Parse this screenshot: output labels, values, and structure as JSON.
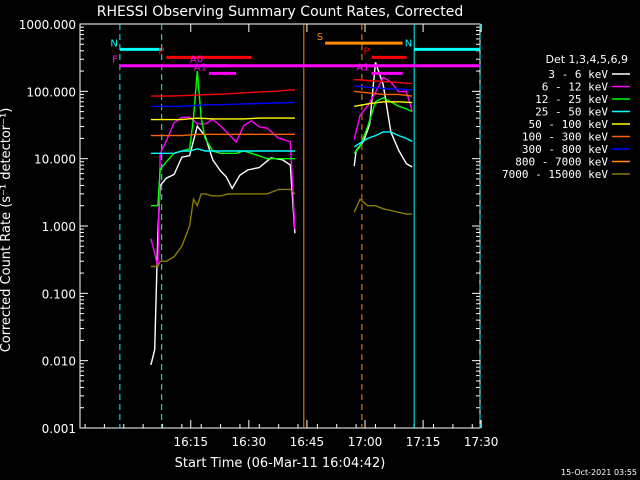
{
  "chart_data": {
    "type": "line",
    "title": "RHESSI Observing Summary Count Rates, Corrected",
    "xlabel": "Start Time (06-Mar-11 16:04:42)",
    "ylabel": "Corrected Count Rate (s⁻¹ detector⁻¹)",
    "yscale": "log",
    "ylim": [
      0.001,
      1000
    ],
    "xlim_minutes": [
      0,
      85
    ],
    "x_ticks": [
      {
        "label": "16:15",
        "min": 10.3
      },
      {
        "label": "16:30",
        "min": 25.3
      },
      {
        "label": "16:45",
        "min": 40.3
      },
      {
        "label": "17:00",
        "min": 55.3
      },
      {
        "label": "17:15",
        "min": 70.3
      },
      {
        "label": "17:30",
        "min": 85.3
      }
    ],
    "y_ticks": [
      {
        "label": "0.001",
        "v": 0.001
      },
      {
        "label": "0.010",
        "v": 0.01
      },
      {
        "label": "0.100",
        "v": 0.1
      },
      {
        "label": "1.000",
        "v": 1
      },
      {
        "label": "10.000",
        "v": 10
      },
      {
        "label": "100.000",
        "v": 100
      },
      {
        "label": "1000.000",
        "v": 1000
      }
    ],
    "legend_title": "Det 1,3,4,5,6,9",
    "legend_position": "right",
    "gaps": [
      [
        37.2,
        52.5
      ]
    ],
    "segments": [
      [
        0,
        37.2
      ],
      [
        52.5,
        67.5
      ]
    ],
    "series": [
      {
        "name": "3 - 6 keV",
        "color": "#ffffff",
        "x": [
          0,
          1,
          1.8,
          2.4,
          4,
          6,
          8,
          10,
          12,
          14,
          16,
          18,
          19.5,
          21,
          23,
          25,
          28,
          31,
          34,
          36,
          37.2,
          52.5,
          53,
          55,
          56.5,
          58,
          60,
          62,
          64,
          66,
          67.5
        ],
        "y": [
          0.008,
          0.013,
          0.9,
          4,
          5,
          6,
          9,
          12,
          35,
          20,
          10,
          6,
          5,
          4.5,
          5.5,
          6.5,
          7.5,
          9,
          11,
          9,
          0.7,
          8,
          12,
          18,
          40,
          250,
          120,
          25,
          12,
          10,
          8
        ]
      },
      {
        "name": "6 - 12 keV",
        "color": "#ff00ff",
        "x": [
          0,
          1,
          1.8,
          2.4,
          4,
          6,
          8,
          10,
          12,
          14,
          16,
          18,
          20,
          22,
          24,
          26,
          28,
          30,
          33,
          36,
          37.2,
          52.5,
          54,
          56,
          58,
          60,
          62,
          64,
          66,
          67.5
        ],
        "y": [
          0.6,
          0.35,
          0.3,
          12,
          18,
          35,
          35,
          45,
          38,
          30,
          40,
          28,
          22,
          22,
          30,
          35,
          30,
          25,
          23,
          20,
          0.8,
          20,
          40,
          60,
          120,
          150,
          130,
          100,
          90,
          60
        ]
      },
      {
        "name": "12 - 25 keV",
        "color": "#00ff00",
        "x": [
          0,
          1,
          1.8,
          2.4,
          4,
          6,
          8,
          10,
          11,
          12,
          13,
          14,
          16,
          18,
          20,
          22,
          24,
          26,
          28,
          30,
          33,
          36,
          37.2,
          52.5,
          54,
          56,
          58,
          60,
          62,
          64,
          66,
          67.5
        ],
        "y": [
          2,
          2,
          2,
          7,
          9,
          12,
          13,
          14,
          40,
          200,
          40,
          20,
          13,
          12,
          12,
          12,
          13,
          12,
          11,
          10,
          10,
          10,
          10,
          12,
          15,
          30,
          70,
          80,
          70,
          60,
          55,
          50
        ]
      },
      {
        "name": "25 - 50 keV",
        "color": "#00ffff",
        "x": [
          0,
          2,
          4,
          6,
          8,
          10,
          12,
          14,
          16,
          18,
          20,
          22,
          24,
          26,
          28,
          30,
          32,
          34,
          36,
          37.2,
          52.5,
          54,
          56,
          58,
          60,
          62,
          64,
          66,
          67.5
        ],
        "y": [
          12,
          12,
          12,
          12,
          13,
          13,
          14,
          13,
          13,
          13,
          13,
          13,
          13,
          13,
          13,
          13,
          13,
          13,
          13,
          13,
          15,
          17,
          20,
          22,
          25,
          25,
          22,
          20,
          18
        ]
      },
      {
        "name": "50 - 100 keV",
        "color": "#ffff00",
        "x": [
          0,
          4,
          8,
          12,
          16,
          20,
          24,
          28,
          32,
          36,
          37.2,
          52.5,
          56,
          60,
          64,
          67.5
        ],
        "y": [
          38,
          38,
          38,
          40,
          39,
          39,
          39,
          40,
          40,
          40,
          40,
          60,
          65,
          70,
          70,
          68
        ]
      },
      {
        "name": "100 - 300 keV",
        "color": "#ff6000",
        "x": [
          0,
          4,
          8,
          12,
          16,
          20,
          24,
          28,
          32,
          36,
          37.2,
          52.5,
          56,
          60,
          64,
          67.5
        ],
        "y": [
          22,
          22,
          22,
          23,
          23,
          23,
          23,
          23,
          23,
          23,
          23,
          100,
          95,
          90,
          90,
          85
        ]
      },
      {
        "name": "300 - 800 keV",
        "color": "#0000ff",
        "x": [
          0,
          4,
          8,
          12,
          16,
          20,
          24,
          28,
          32,
          36,
          37.2,
          52.5,
          56,
          60,
          64,
          67.5
        ],
        "y": [
          60,
          60,
          60,
          62,
          63,
          64,
          65,
          66,
          67,
          68,
          68,
          120,
          115,
          110,
          108,
          105
        ]
      },
      {
        "name": "800 - 7000 keV",
        "color": "#ff8c00",
        "x": [
          0,
          67.5
        ],
        "y": [
          null,
          null
        ]
      },
      {
        "name": "7000 - 15000 keV",
        "color": "#8b7d00",
        "x": [
          0,
          1,
          1.8,
          2.4,
          4,
          6,
          8,
          10,
          11,
          12,
          13,
          14,
          16,
          18,
          20,
          22,
          24,
          26,
          28,
          30,
          33,
          36,
          37.2,
          52.5,
          54,
          56,
          58,
          60,
          62,
          64,
          66,
          67.5
        ],
        "y": [
          0.25,
          0.25,
          0.25,
          0.3,
          0.3,
          0.35,
          0.5,
          1,
          2.5,
          2,
          3,
          3,
          2.8,
          2.8,
          3,
          3,
          3,
          3,
          3,
          3,
          3.5,
          3.5,
          3,
          1.6,
          2.5,
          2,
          2,
          1.8,
          1.7,
          1.6,
          1.5,
          1.5
        ]
      }
    ],
    "red_series": {
      "name": "",
      "color": "#ff0000",
      "x": [
        0,
        4,
        8,
        12,
        16,
        20,
        24,
        28,
        32,
        36,
        37.2,
        52.5,
        56,
        60,
        64,
        67.5
      ],
      "y": [
        85,
        85,
        86,
        88,
        90,
        92,
        95,
        98,
        100,
        105,
        105,
        150,
        145,
        140,
        135,
        130
      ]
    },
    "annotations": [
      {
        "label": "N",
        "color": "#00ffff",
        "x1": -8,
        "x2": 2.8,
        "y": 420
      },
      {
        "label": "N",
        "color": "#00ffff",
        "x1": 68,
        "x2": 85,
        "y": 420
      },
      {
        "label": "F",
        "color": "#ff00ff",
        "x1": -8,
        "x2": 85,
        "y": 240
      },
      {
        "label": "S",
        "color": "#ff8c00",
        "x1": 45,
        "x2": 65,
        "y": 520
      },
      {
        "label": "P",
        "color": "#ff0000",
        "x1": 4,
        "x2": 26,
        "y": 320
      },
      {
        "label": "P",
        "color": "#ff0000",
        "x1": 57,
        "x2": 66,
        "y": 320
      },
      {
        "label": "A0",
        "color": "#ff00ff",
        "x1": 14,
        "x2": 20,
        "y": 240
      },
      {
        "label": "A1",
        "color": "#ff00ff",
        "x1": 15,
        "x2": 22,
        "y": 185
      },
      {
        "label": "A1",
        "color": "#ff00ff",
        "x1": 57,
        "x2": 65,
        "y": 185
      }
    ],
    "vlines": [
      {
        "x": -8,
        "color": "#00ffff",
        "style": "dash"
      },
      {
        "x": 2.8,
        "color": "#00ffff",
        "style": "dash"
      },
      {
        "x": 39.5,
        "color": "#ff8c00",
        "style": "solid"
      },
      {
        "x": 54.5,
        "color": "#ff8c00",
        "style": "dash"
      },
      {
        "x": 68,
        "color": "#00ffff",
        "style": "solid"
      },
      {
        "x": 85,
        "color": "#00ffff",
        "style": "dash"
      }
    ]
  },
  "footer": {
    "timestamp": "15-Oct-2021 03:55"
  }
}
